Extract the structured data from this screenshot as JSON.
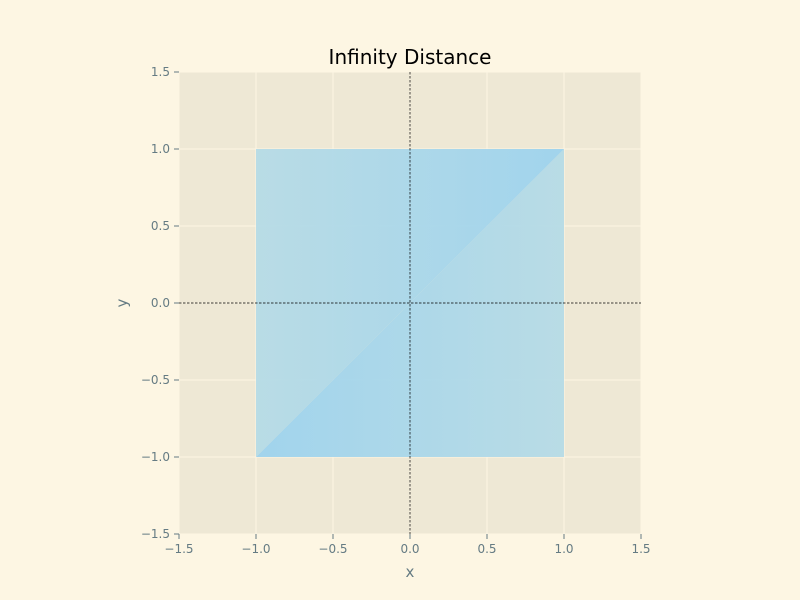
{
  "chart_data": {
    "type": "area",
    "title": "Infinity Distance",
    "xlabel": "x",
    "ylabel": "y",
    "xlim": [
      -1.5,
      1.5
    ],
    "ylim": [
      -1.5,
      1.5
    ],
    "x_ticks": [
      -1.5,
      -1.0,
      -0.5,
      0.0,
      0.5,
      1.0,
      1.5
    ],
    "y_ticks": [
      -1.5,
      -1.0,
      -0.5,
      0.0,
      0.5,
      1.0,
      1.5
    ],
    "x_tick_labels": [
      "−1.5",
      "−1.0",
      "−0.5",
      "0.0",
      "0.5",
      "1.0",
      "1.5"
    ],
    "y_tick_labels": [
      "−1.5",
      "−1.0",
      "−0.5",
      "0.0",
      "0.5",
      "1.0",
      "1.5"
    ],
    "grid": true,
    "reference_lines": {
      "x": 0,
      "y": 0,
      "style": "dashed"
    },
    "series": [
      {
        "points": [
          [
            -1,
            -1
          ],
          [
            1,
            1
          ],
          [
            1,
            -1
          ]
        ],
        "color": "#a8d8ea"
      },
      {
        "points": [
          [
            -1,
            -1
          ],
          [
            -1,
            1
          ],
          [
            1,
            1
          ]
        ],
        "color": "#a8d8ea"
      }
    ]
  },
  "colors": {
    "page_background": "#fdf6e3",
    "plot_background": "#eee8d5",
    "grid": "#fdf6e3",
    "tick_text": "#657b83",
    "title_text": "#000000",
    "fill_dark": "#9dd3ee",
    "fill_light": "#b6dbe6"
  }
}
